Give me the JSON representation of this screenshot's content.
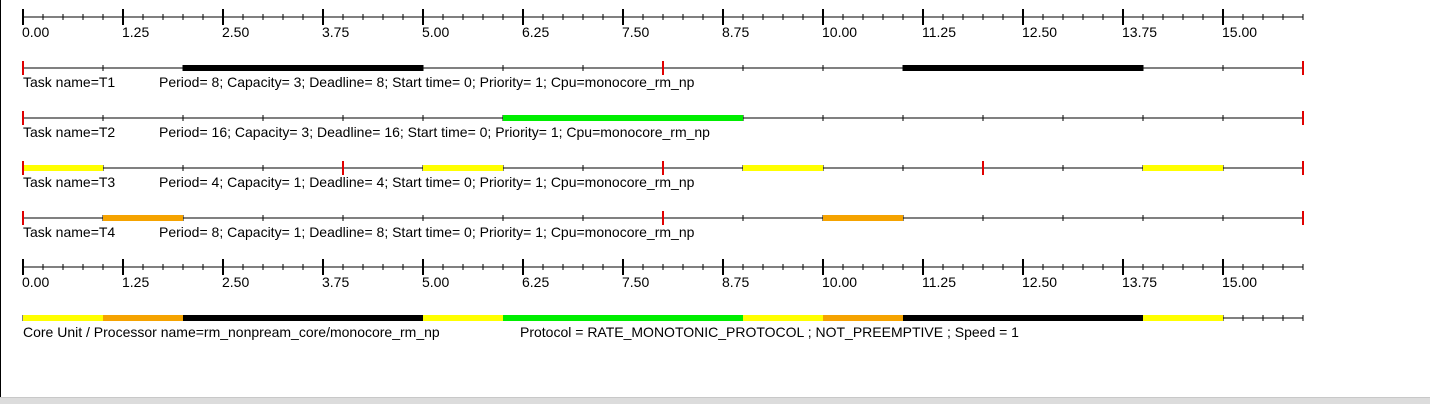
{
  "axis": {
    "tick_labels": [
      "0.00",
      "1.25",
      "2.50",
      "3.75",
      "5.00",
      "6.25",
      "7.50",
      "8.75",
      "10.00",
      "11.25",
      "12.50",
      "13.75",
      "15.00"
    ],
    "max_time": 16,
    "minor_ticks_per_unit": 4
  },
  "tasks": [
    {
      "name_label": "Task name=T1",
      "params": "Period= 8; Capacity= 3; Deadline= 8; Start time= 0; Priority= 1; Cpu=monocore_rm_np",
      "period": 8,
      "segments": [
        [
          2,
          5
        ],
        [
          11,
          14
        ]
      ],
      "color": "#000000"
    },
    {
      "name_label": "Task name=T2",
      "params": "Period= 16; Capacity= 3; Deadline= 16; Start time= 0; Priority= 1; Cpu=monocore_rm_np",
      "period": 16,
      "segments": [
        [
          6,
          9
        ]
      ],
      "color": "#00ee00"
    },
    {
      "name_label": "Task name=T3",
      "params": "Period= 4; Capacity= 1; Deadline= 4; Start time= 0; Priority= 1; Cpu=monocore_rm_np",
      "period": 4,
      "segments": [
        [
          0,
          1
        ],
        [
          5,
          6
        ],
        [
          9,
          10
        ],
        [
          14,
          15
        ]
      ],
      "color": "#ffff00"
    },
    {
      "name_label": "Task name=T4",
      "params": "Period= 8; Capacity= 1; Deadline= 8; Start time= 0; Priority= 1; Cpu=monocore_rm_np",
      "period": 8,
      "segments": [
        [
          1,
          2
        ],
        [
          10,
          11
        ]
      ],
      "color": "#f5a300"
    }
  ],
  "processor": {
    "name_label": "Core Unit / Processor name=rm_nonpream_core/monocore_rm_np",
    "protocol": "Protocol = RATE_MONOTONIC_PROTOCOL ; NOT_PREEMPTIVE ; Speed =  1",
    "segments": [
      {
        "start": 0,
        "end": 1,
        "color": "#ffff00"
      },
      {
        "start": 1,
        "end": 2,
        "color": "#f5a300"
      },
      {
        "start": 2,
        "end": 5,
        "color": "#000000"
      },
      {
        "start": 5,
        "end": 6,
        "color": "#ffff00"
      },
      {
        "start": 6,
        "end": 9,
        "color": "#00ee00"
      },
      {
        "start": 9,
        "end": 10,
        "color": "#ffff00"
      },
      {
        "start": 10,
        "end": 11,
        "color": "#f5a300"
      },
      {
        "start": 11,
        "end": 14,
        "color": "#000000"
      },
      {
        "start": 14,
        "end": 15,
        "color": "#ffff00"
      }
    ]
  },
  "colors": {
    "deadline_marker": "#e00000",
    "axis_line": "#000000"
  }
}
